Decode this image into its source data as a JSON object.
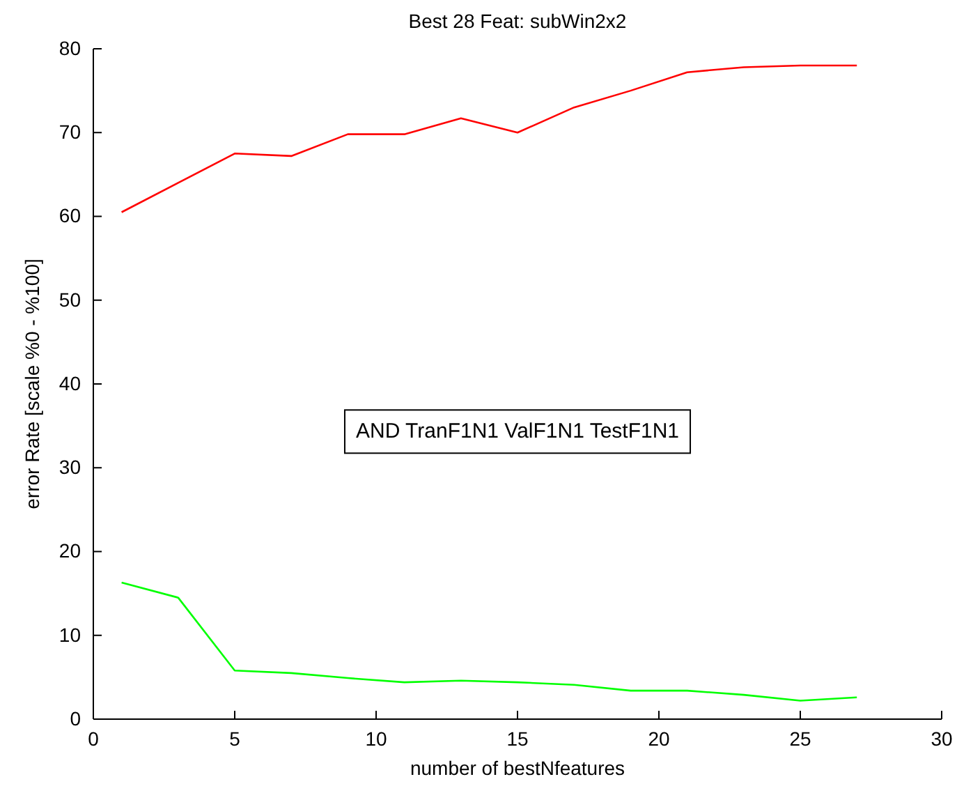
{
  "chart_data": {
    "type": "line",
    "title": "Best 28 Feat: subWin2x2",
    "xlabel": "number of bestNfeatures",
    "ylabel": "error Rate [scale %0 - %100]",
    "x": [
      1,
      3,
      5,
      7,
      9,
      11,
      13,
      15,
      17,
      19,
      21,
      23,
      25,
      27
    ],
    "series": [
      {
        "color": "#ff0000",
        "values": [
          60.5,
          64,
          67.5,
          67.2,
          69.8,
          69.8,
          71.7,
          70,
          73,
          75,
          77.2,
          77.8,
          78,
          78
        ]
      },
      {
        "color": "#00ff00",
        "values": [
          16.3,
          14.5,
          5.8,
          5.5,
          4.9,
          4.4,
          4.6,
          4.4,
          4.1,
          3.4,
          3.4,
          2.9,
          2.2,
          2.6
        ]
      }
    ],
    "xlim": [
      0,
      30
    ],
    "xticks": [
      0,
      5,
      10,
      15,
      20,
      25,
      30
    ],
    "ylim": [
      0,
      80
    ],
    "yticks": [
      0,
      10,
      20,
      30,
      40,
      50,
      60,
      70,
      80
    ],
    "annotations": [
      "AND TranF1N1 ValF1N1 TestF1N1"
    ],
    "line_style": "solid"
  }
}
